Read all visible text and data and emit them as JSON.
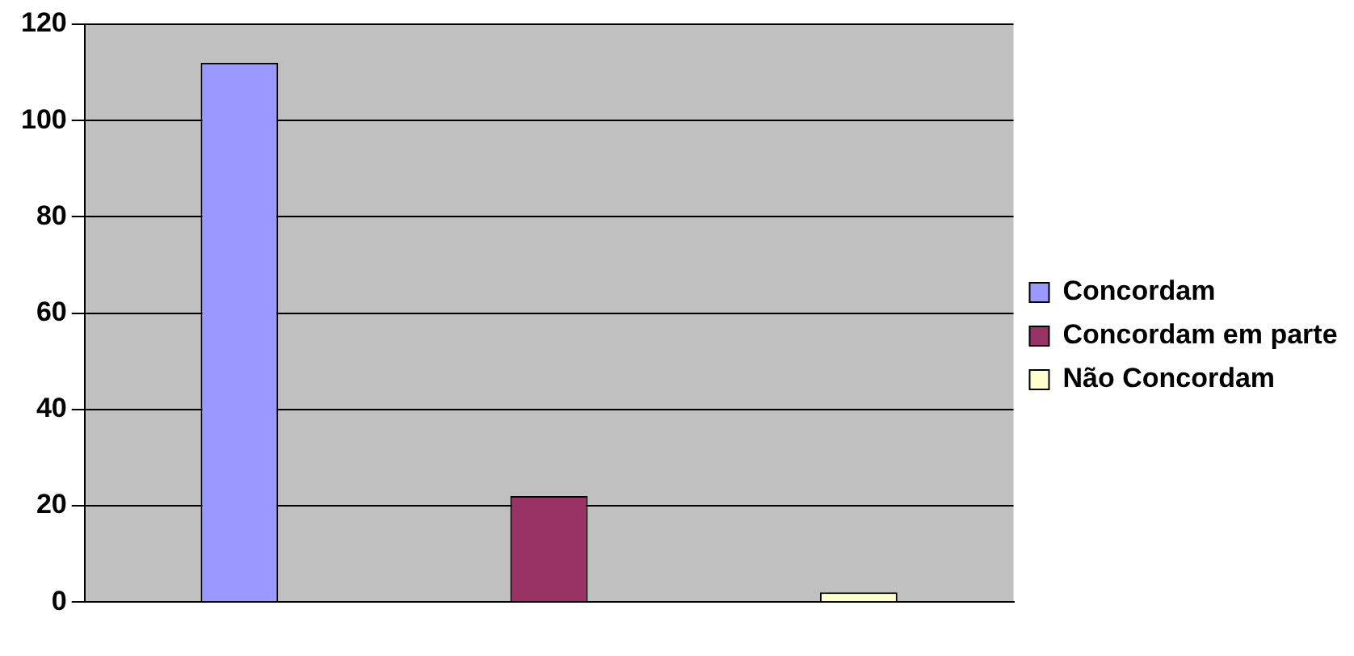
{
  "chart_data": {
    "type": "bar",
    "categories": [
      null,
      null,
      null
    ],
    "series": [
      {
        "name": "Concordam",
        "color": "#9999ff",
        "values": [
          112,
          null,
          null
        ]
      },
      {
        "name": "Concordam em parte",
        "color": "#993366",
        "values": [
          null,
          22,
          null
        ]
      },
      {
        "name": "Não Concordam",
        "color": "#ffffcc",
        "values": [
          null,
          null,
          2
        ]
      }
    ],
    "ylim": [
      0,
      120
    ],
    "yticks": [
      0,
      20,
      40,
      60,
      80,
      100,
      120
    ],
    "grid": "y",
    "legend": "right"
  }
}
